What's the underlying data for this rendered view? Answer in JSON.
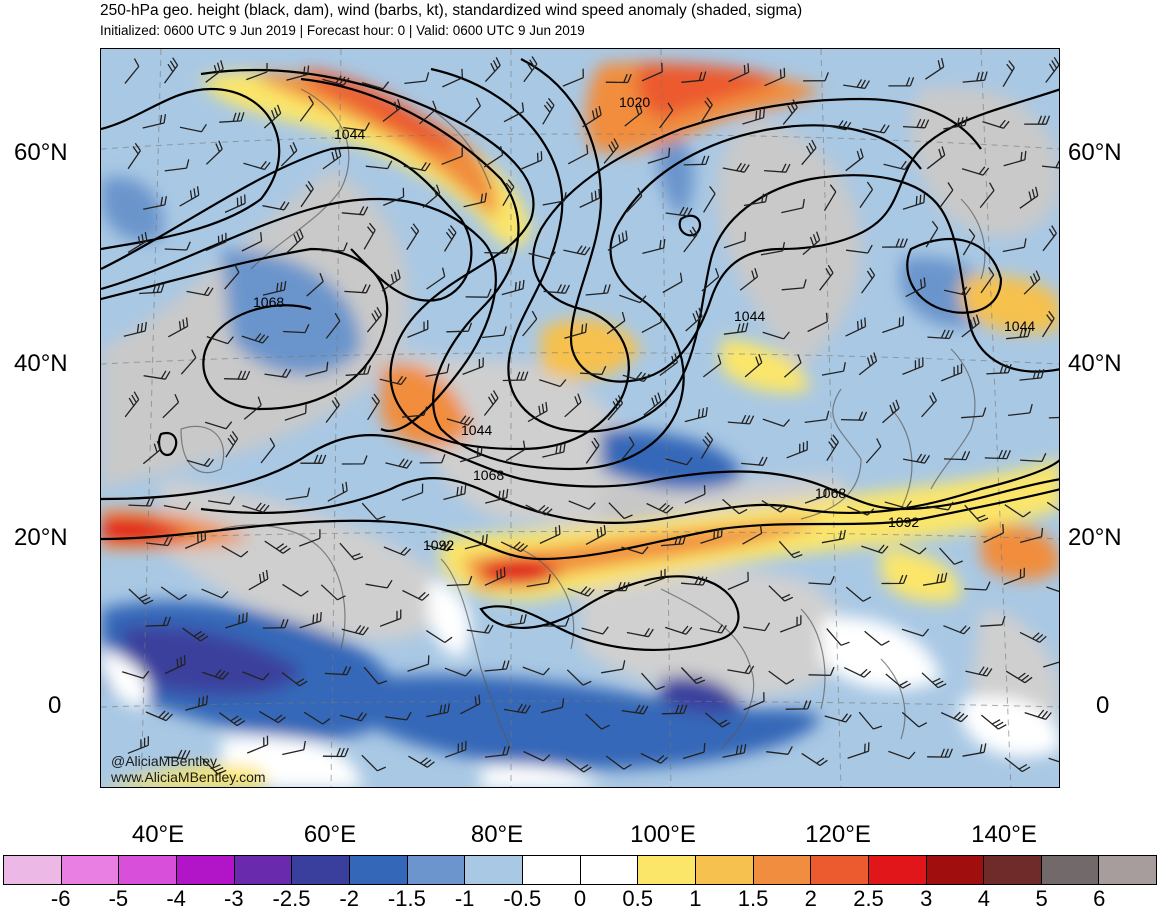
{
  "header": {
    "title": "250-hPa geo. height (black, dam), wind (barbs, kt), standardized wind speed anomaly (shaded, sigma)",
    "subtitle": "Initialized: 0600 UTC 9 Jun 2019 | Forecast hour: 0 | Valid: 0600 UTC 9 Jun 2019"
  },
  "map": {
    "lat_labels": [
      "60°N",
      "40°N",
      "20°N",
      "0"
    ],
    "lon_labels": [
      "40°E",
      "60°E",
      "80°E",
      "100°E",
      "120°E",
      "140°E"
    ],
    "contour_labels": [
      "1044",
      "1020",
      "1068",
      "1044",
      "1044",
      "1044",
      "1068",
      "1092",
      "1068",
      "1092"
    ],
    "credit_handle": "@AliciaMBentley",
    "credit_url": "www.AliciaMBentley.com",
    "land_color": "#c8c8c8",
    "ocean_color": "#ffffff"
  },
  "colorbar": {
    "labels": [
      "-6",
      "-5",
      "-4",
      "-3",
      "-2.5",
      "-2",
      "-1.5",
      "-1",
      "-0.5",
      "0",
      "0.5",
      "1",
      "1.5",
      "2",
      "2.5",
      "3",
      "4",
      "5",
      "6"
    ],
    "colors": [
      "#ecb9e6",
      "#e97ee3",
      "#d84fd9",
      "#b215c8",
      "#6a2aae",
      "#3a3f9d",
      "#3467b8",
      "#6b95cc",
      "#a9c8e4",
      "#ffffff",
      "#ffffff",
      "#fbe66a",
      "#f6c14e",
      "#f18d3e",
      "#ec5a2f",
      "#e0161b",
      "#a10e0e",
      "#6f2a2a",
      "#726a6a",
      "#a79d9d"
    ]
  }
}
